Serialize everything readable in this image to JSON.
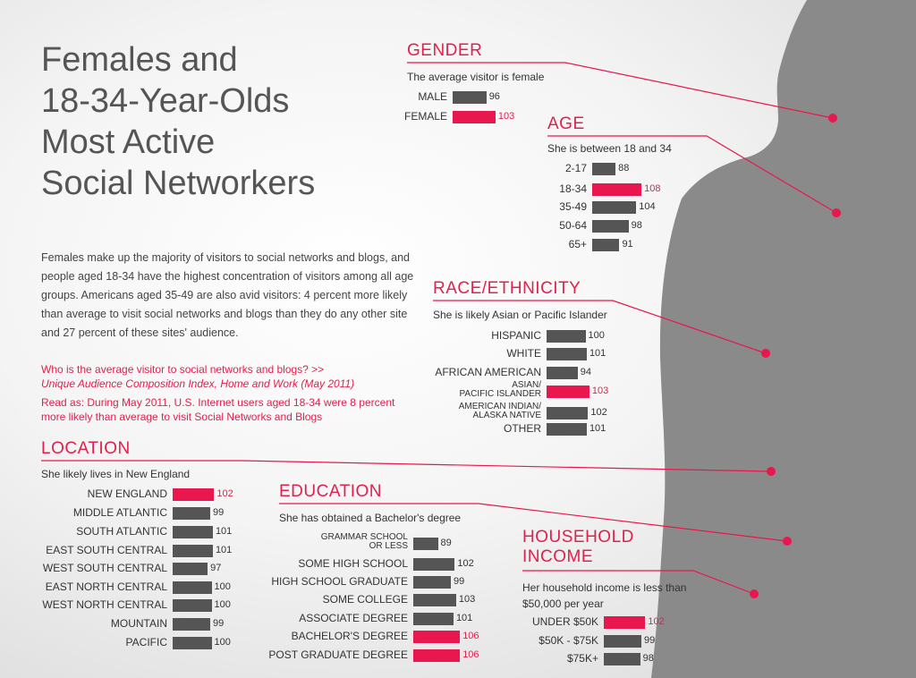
{
  "title_lines": [
    "Females and",
    "18-34-Year-Olds",
    "Most Active",
    "Social Networkers"
  ],
  "intro": "Females make up the majority of visitors to social networks and blogs, and people aged 18-34 have the highest concentration of visitors among all age groups. Americans aged 35-49 are also avid visitors: 4 percent more likely than average to visit social networks and blogs than they do any other site and 27 percent of these sites' audience.",
  "source_note": "Who is the average visitor to social networks and blogs? >>",
  "source_italic": "Unique Audience Composition Index, Home and Work (May 2011)",
  "read_as": "Read as: During May 2011, U.S. Internet users aged 18-34 were 8 percent more likely than average to visit Social Networks and Blogs",
  "colors": {
    "accent": "#e8174d",
    "bar": "#555555",
    "silhouette": "#8a8a8a"
  },
  "chart_data": [
    {
      "type": "bar",
      "title": "GENDER",
      "subtitle": "The average visitor is female",
      "categories": [
        "MALE",
        "FEMALE"
      ],
      "values": [
        96,
        103
      ],
      "highlight": [
        false,
        true
      ]
    },
    {
      "type": "bar",
      "title": "AGE",
      "subtitle": "She is between 18 and 34",
      "categories": [
        "2-17",
        "18-34",
        "35-49",
        "50-64",
        "65+"
      ],
      "values": [
        88,
        108,
        104,
        98,
        91
      ],
      "highlight": [
        false,
        true,
        false,
        false,
        false
      ]
    },
    {
      "type": "bar",
      "title": "RACE/ETHNICITY",
      "subtitle": "She is likely Asian or Pacific Islander",
      "categories": [
        "HISPANIC",
        "WHITE",
        "AFRICAN AMERICAN",
        "ASIAN/ PACIFIC ISLANDER",
        "AMERICAN INDIAN/ ALASKA NATIVE",
        "OTHER"
      ],
      "values": [
        100,
        101,
        94,
        103,
        102,
        101
      ],
      "highlight": [
        false,
        false,
        false,
        true,
        false,
        false
      ]
    },
    {
      "type": "bar",
      "title": "LOCATION",
      "subtitle": "She likely lives in New England",
      "categories": [
        "NEW ENGLAND",
        "MIDDLE ATLANTIC",
        "SOUTH ATLANTIC",
        "EAST SOUTH CENTRAL",
        "WEST SOUTH CENTRAL",
        "EAST NORTH CENTRAL",
        "WEST NORTH CENTRAL",
        "MOUNTAIN",
        "PACIFIC"
      ],
      "values": [
        102,
        99,
        101,
        101,
        97,
        100,
        100,
        99,
        100
      ],
      "highlight": [
        true,
        false,
        false,
        false,
        false,
        false,
        false,
        false,
        false
      ]
    },
    {
      "type": "bar",
      "title": "EDUCATION",
      "subtitle": "She has obtained a Bachelor's degree",
      "categories": [
        "GRAMMAR SCHOOL OR LESS",
        "SOME HIGH SCHOOL",
        "HIGH SCHOOL GRADUATE",
        "SOME COLLEGE",
        "ASSOCIATE DEGREE",
        "BACHELOR'S DEGREE",
        "POST GRADUATE DEGREE"
      ],
      "values": [
        89,
        102,
        99,
        103,
        101,
        106,
        106
      ],
      "highlight": [
        false,
        false,
        false,
        false,
        false,
        true,
        true
      ]
    },
    {
      "type": "bar",
      "title": "HOUSEHOLD INCOME",
      "subtitle": "Her household income is less than $50,000 per year",
      "categories": [
        "UNDER $50K",
        "$50K - $75K",
        "$75K+"
      ],
      "values": [
        102,
        99,
        98
      ],
      "highlight": [
        true,
        false,
        false
      ]
    }
  ]
}
